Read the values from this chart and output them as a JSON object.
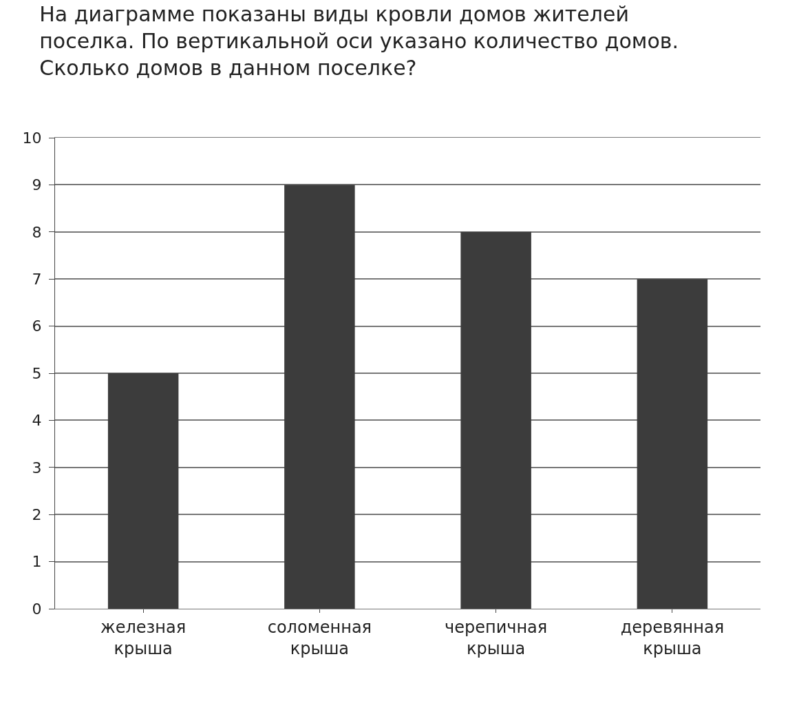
{
  "chart_data": {
    "type": "bar",
    "title": "На диаграмме показаны виды кровли домов жителей поселка. По вертикальной оси указано количество домов. Сколько домов в данном поселке?",
    "categories": [
      "железная крыша",
      "соломенная крыша",
      "черепичная крыша",
      "деревянная крыша"
    ],
    "values": [
      5,
      9,
      8,
      7
    ],
    "color": "#3c3c3c",
    "ylim": [
      0,
      10
    ],
    "yticks": [
      0,
      1,
      2,
      3,
      4,
      5,
      6,
      7,
      8,
      9,
      10
    ],
    "grid": "y"
  }
}
